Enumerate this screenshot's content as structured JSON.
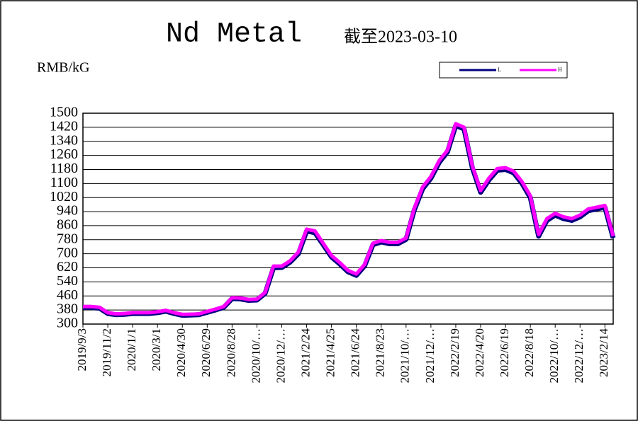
{
  "chart_data": {
    "type": "line",
    "title": "Nd Metal",
    "subtitle": "截至2023-03-10",
    "y_label": "RMB/kG",
    "categories": [
      "2019/9/3",
      null,
      null,
      "2019/11/2",
      null,
      null,
      "2020/1/1",
      null,
      null,
      "2020/3/1",
      null,
      null,
      "2020/4/30",
      null,
      null,
      "2020/6/29",
      null,
      null,
      "2020/8/28",
      null,
      null,
      "2020/10/…",
      null,
      null,
      "2020/12/…",
      null,
      null,
      "2021/2/24",
      null,
      null,
      "2021/4/25",
      null,
      null,
      "2021/6/24",
      null,
      null,
      "2021/8/23",
      null,
      null,
      "2021/10/…",
      null,
      null,
      "2021/12/…",
      null,
      null,
      "2022/2/19",
      null,
      null,
      "2022/4/20",
      null,
      null,
      "2022/6/19",
      null,
      null,
      "2022/8/18",
      null,
      null,
      "2022/10/…",
      null,
      null,
      "2022/12/…",
      null,
      null,
      "2023/2/14",
      null
    ],
    "series": [
      {
        "name": "L",
        "color": "#000080",
        "values": [
          395,
          395,
          390,
          360,
          353,
          355,
          360,
          360,
          360,
          365,
          373,
          360,
          350,
          351,
          353,
          367,
          380,
          395,
          445,
          443,
          435,
          437,
          475,
          620,
          622,
          652,
          700,
          830,
          820,
          752,
          682,
          642,
          597,
          577,
          632,
          752,
          767,
          757,
          757,
          782,
          950,
          1070,
          1130,
          1220,
          1280,
          1430,
          1410,
          1190,
          1050,
          1120,
          1175,
          1180,
          1160,
          1100,
          1020,
          800,
          890,
          920,
          900,
          890,
          910,
          945,
          955,
          965,
          790
        ]
      },
      {
        "name": "H",
        "color": "#ff00ff",
        "values": [
          400,
          400,
          395,
          365,
          358,
          360,
          365,
          365,
          365,
          370,
          378,
          365,
          355,
          356,
          358,
          372,
          385,
          400,
          450,
          448,
          440,
          442,
          480,
          630,
          630,
          660,
          710,
          840,
          830,
          760,
          690,
          650,
          605,
          585,
          640,
          760,
          775,
          765,
          765,
          790,
          960,
          1080,
          1140,
          1230,
          1290,
          1440,
          1420,
          1200,
          1060,
          1130,
          1185,
          1190,
          1170,
          1110,
          1030,
          810,
          900,
          930,
          910,
          900,
          920,
          955,
          965,
          975,
          800
        ]
      }
    ],
    "ylim": [
      300,
      1500
    ],
    "yticks": [
      300,
      380,
      460,
      540,
      620,
      700,
      780,
      860,
      940,
      1020,
      1100,
      1180,
      1260,
      1340,
      1420,
      1500
    ],
    "grid": true,
    "legend": "top-right"
  }
}
